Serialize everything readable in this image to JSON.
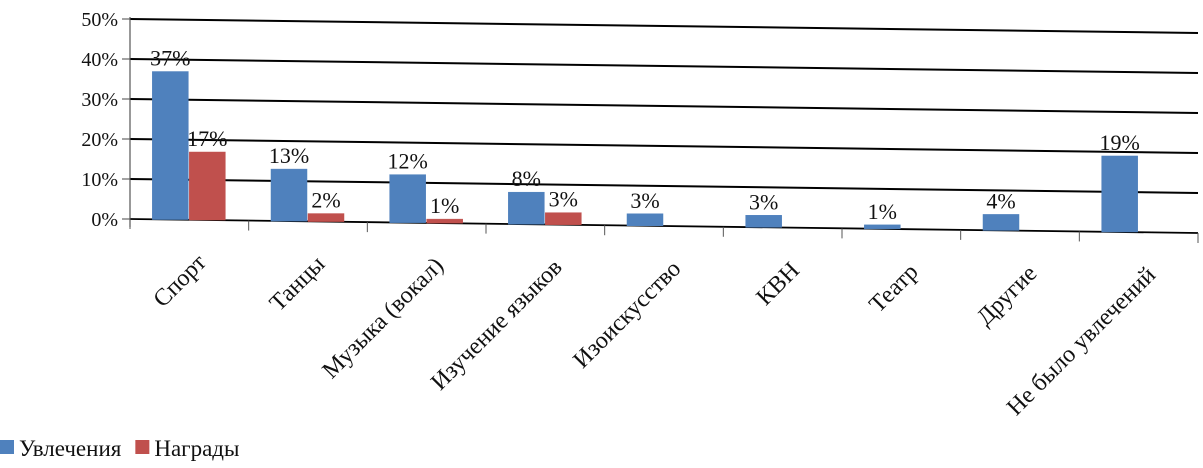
{
  "chart_data": {
    "type": "bar",
    "categories": [
      "Спорт",
      "Танцы",
      "Музыка (вокал)",
      "Изучение языков",
      "Изоискусство",
      "КВН",
      "Театр",
      "Другие",
      "Не было увлечений"
    ],
    "series": [
      {
        "name": "Увлечения",
        "values": [
          37,
          13,
          12,
          8,
          3,
          3,
          1,
          4,
          19
        ],
        "color": "#4F81BD",
        "labels": [
          "37%",
          "13%",
          "12%",
          "8%",
          "3%",
          "3%",
          "1%",
          "4%",
          "19%"
        ]
      },
      {
        "name": "Награды",
        "values": [
          17,
          2,
          1,
          3,
          null,
          null,
          null,
          null,
          null
        ],
        "color": "#C0504D",
        "labels": [
          "17%",
          "2%",
          "1%",
          "3%",
          "",
          "",
          "",
          "",
          ""
        ]
      }
    ],
    "y_ticks": [
      "0%",
      "10%",
      "20%",
      "30%",
      "40%",
      "50%"
    ],
    "ylim": [
      0,
      50
    ],
    "grid": true,
    "legend_position": "bottom-left"
  }
}
